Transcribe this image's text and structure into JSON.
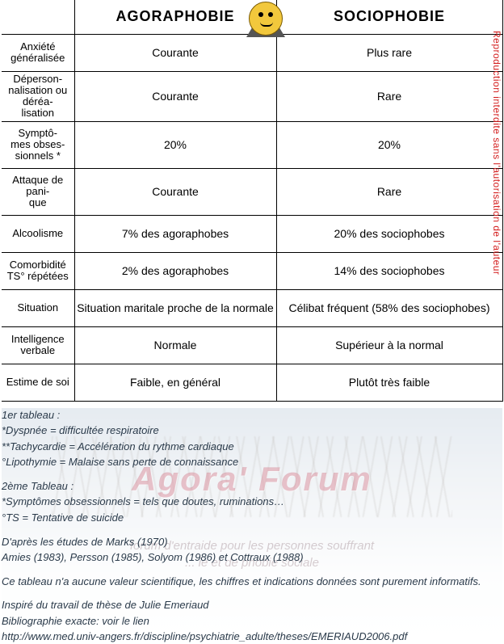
{
  "table": {
    "headers": {
      "blank": "",
      "col1": "AGORAPHOBIE",
      "col2": "SOCIOPHOBIE"
    },
    "rows": [
      {
        "label": "Anxiété généralisée",
        "c1": "Courante",
        "c2": "Plus rare",
        "tall": false
      },
      {
        "label": "Déperson-\nnalisation ou déréa-\nlisation",
        "c1": "Courante",
        "c2": "Rare",
        "tall": true
      },
      {
        "label": "Symptô-\nmes obses-\nsionnels *",
        "c1": "20%",
        "c2": "20%",
        "tall": true
      },
      {
        "label": "Attaque de pani-\nque",
        "c1": "Courante",
        "c2": "Rare",
        "tall": true
      },
      {
        "label": "Alcoolisme",
        "c1": "7% des agoraphobes",
        "c2": "20% des sociophobes",
        "tall": false
      },
      {
        "label": "Comorbidité TS° répétées",
        "c1": "2% des agoraphobes",
        "c2": "14% des sociophobes",
        "tall": false
      },
      {
        "label": "Situation",
        "c1": "Situation maritale proche de la normale",
        "c2": "Célibat fréquent (58% des sociophobes)",
        "tall": false
      },
      {
        "label": "Intelligence verbale",
        "c1": "Normale",
        "c2": "Supérieur à la normal",
        "tall": false
      },
      {
        "label": "Estime de soi",
        "c1": "Faible, en général",
        "c2": "Plutôt très faible",
        "tall": false
      }
    ]
  },
  "watermark_red": "Reproduction interdite sans l'autorisation de l'auteur",
  "forum_watermark": "Agora' Forum",
  "forum_sub": "forum d'entraide pour les personnes souffrant\n... ie et de phobie sociale",
  "footer": {
    "b1_title": "1er tableau :",
    "b1_l1": "*Dyspnée = difficultée respiratoire",
    "b1_l2": "**Tachycardie = Accélération du rythme cardiaque",
    "b1_l3": "°Lipothymie = Malaise sans perte de connaissance",
    "b2_title": "2ème Tableau :",
    "b2_l1": "*Symptômes obsessionnels = tels que doutes, ruminations…",
    "b2_l2": "°TS = Tentative de suicide",
    "b3_l1": "D'après les études de Marks (1970)",
    "b3_l2": "Amies (1983), Persson (1985), Solyom (1986) et Cottraux (1988)",
    "b4": "Ce tableau n'a aucune valeur scientifique, les chiffres et indications données sont purement informatifs.",
    "b5_l1": "Inspiré du travail de thèse de Julie Emeriaud",
    "b5_l2": "Bibliographie exacte: voir le lien",
    "b5_l3": "http://www.med.univ-angers.fr/discipline/psychiatrie_adulte/theses/EMERIAUD2006.pdf"
  },
  "colors": {
    "border": "#000000",
    "text": "#000000",
    "footer_text": "#2a3a4a",
    "watermark_red": "#d42020",
    "forum_wm": "rgba(200,90,110,0.35)"
  }
}
